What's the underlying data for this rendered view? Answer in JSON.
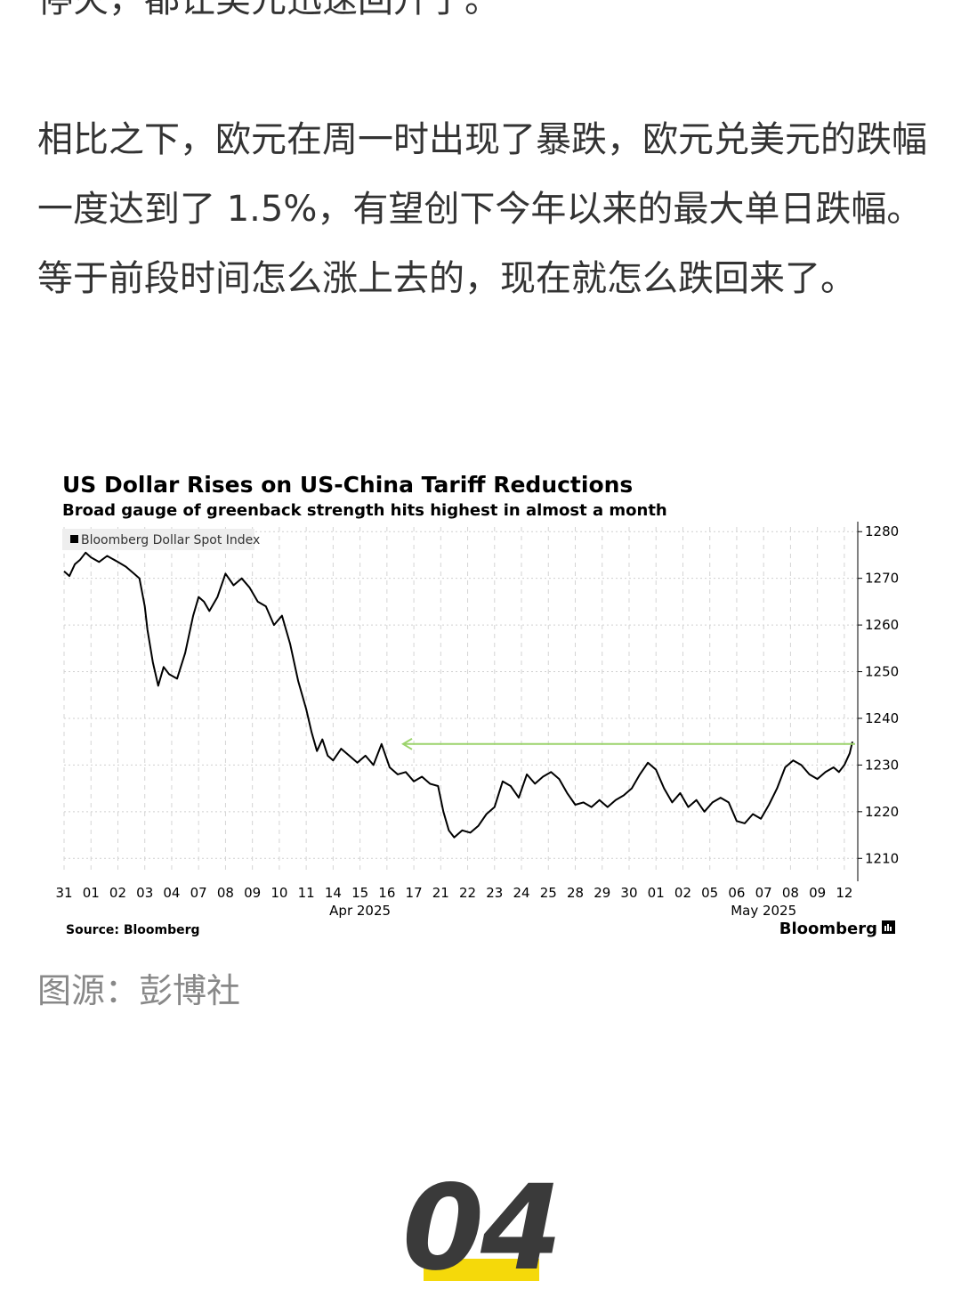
{
  "article": {
    "top_line_partial": "停火，都让美元迅速回升了。",
    "paragraph": "相比之下，欧元在周一时出现了暴跌，欧元兑美元的跌幅一度达到了 1.5%，有望创下今年以来的最大单日跌幅。等于前段时间怎么涨上去的，现在就怎么跌回来了。",
    "caption": "图源：彭博社"
  },
  "section": {
    "number": "04",
    "accent_color": "#f5d90a"
  },
  "chart_data": {
    "type": "line",
    "title": "US Dollar Rises on US-China Tariff Reductions",
    "subtitle": "Broad gauge of greenback strength hits highest in almost a month",
    "legend": "Bloomberg Dollar Spot Index",
    "legend_placement": "top-left",
    "source": "Source: Bloomberg",
    "brand": "Bloomberg",
    "x_tick_labels": [
      "31",
      "01",
      "02",
      "03",
      "04",
      "07",
      "08",
      "09",
      "10",
      "11",
      "14",
      "15",
      "16",
      "17",
      "21",
      "22",
      "23",
      "24",
      "25",
      "28",
      "29",
      "30",
      "01",
      "02",
      "05",
      "06",
      "07",
      "08",
      "09",
      "12"
    ],
    "x_group_labels": [
      {
        "label": "Apr 2025",
        "under": "15"
      },
      {
        "label": "May 2025",
        "under": "07"
      }
    ],
    "y_ticks": [
      1280,
      1270,
      1260,
      1250,
      1240,
      1230,
      1220,
      1210
    ],
    "ylim": [
      1207,
      1281
    ],
    "y_axis_side": "right",
    "grid": true,
    "line_color": "#000000",
    "annotation_arrow": {
      "from_x": 29.4,
      "to_x": 12.6,
      "y": 1234.5,
      "color": "#9bd36b"
    },
    "series": [
      {
        "name": "Bloomberg Dollar Spot Index",
        "x": [
          0,
          0.2,
          0.4,
          0.6,
          0.8,
          1.0,
          1.3,
          1.6,
          2.0,
          2.3,
          2.6,
          2.8,
          3.0,
          3.1,
          3.3,
          3.5,
          3.7,
          3.9,
          4.2,
          4.5,
          4.8,
          5.0,
          5.2,
          5.4,
          5.7,
          6.0,
          6.3,
          6.6,
          6.9,
          7.2,
          7.5,
          7.8,
          8.1,
          8.4,
          8.7,
          9.0,
          9.2,
          9.4,
          9.6,
          9.8,
          10.0,
          10.3,
          10.6,
          10.9,
          11.2,
          11.5,
          11.8,
          12.1,
          12.4,
          12.7,
          13.0,
          13.3,
          13.6,
          13.9,
          14.1,
          14.3,
          14.5,
          14.8,
          15.1,
          15.4,
          15.7,
          16.0,
          16.3,
          16.6,
          16.9,
          17.2,
          17.5,
          17.8,
          18.1,
          18.4,
          18.7,
          19.0,
          19.3,
          19.6,
          19.9,
          20.2,
          20.5,
          20.8,
          21.1,
          21.4,
          21.7,
          22.0,
          22.3,
          22.6,
          22.9,
          23.2,
          23.5,
          23.8,
          24.1,
          24.4,
          24.7,
          25.0,
          25.3,
          25.6,
          25.9,
          26.2,
          26.5,
          26.8,
          27.1,
          27.4,
          27.7,
          28.0,
          28.3,
          28.6,
          28.8,
          29.0,
          29.2,
          29.3
        ],
        "y": [
          1271.5,
          1270.5,
          1273.0,
          1274.0,
          1275.5,
          1274.5,
          1273.5,
          1274.8,
          1273.5,
          1272.5,
          1271.0,
          1270.0,
          1264.0,
          1259.0,
          1252.0,
          1247.0,
          1251.0,
          1249.5,
          1248.5,
          1254.0,
          1262.0,
          1266.0,
          1265.0,
          1263.0,
          1266.0,
          1271.0,
          1268.5,
          1270.0,
          1268.0,
          1265.0,
          1264.0,
          1260.0,
          1262.0,
          1256.0,
          1248.0,
          1242.0,
          1237.0,
          1233.0,
          1235.5,
          1232.0,
          1231.0,
          1233.5,
          1232.0,
          1230.5,
          1232.0,
          1230.0,
          1234.5,
          1229.5,
          1228.0,
          1228.5,
          1226.5,
          1227.5,
          1226.0,
          1225.5,
          1220.0,
          1216.0,
          1214.5,
          1216.0,
          1215.5,
          1217.0,
          1219.5,
          1221.0,
          1226.5,
          1225.5,
          1223.0,
          1228.0,
          1226.0,
          1227.5,
          1228.5,
          1227.0,
          1224.0,
          1221.5,
          1222.0,
          1221.0,
          1222.5,
          1221.0,
          1222.5,
          1223.5,
          1225.0,
          1228.0,
          1230.5,
          1229.0,
          1225.0,
          1222.0,
          1224.0,
          1221.0,
          1222.5,
          1220.0,
          1222.0,
          1223.0,
          1222.0,
          1218.0,
          1217.5,
          1219.5,
          1218.5,
          1221.5,
          1225.0,
          1229.5,
          1231.0,
          1230.0,
          1228.0,
          1227.0,
          1228.5,
          1229.5,
          1228.5,
          1230.0,
          1232.5,
          1235.0
        ]
      }
    ]
  }
}
